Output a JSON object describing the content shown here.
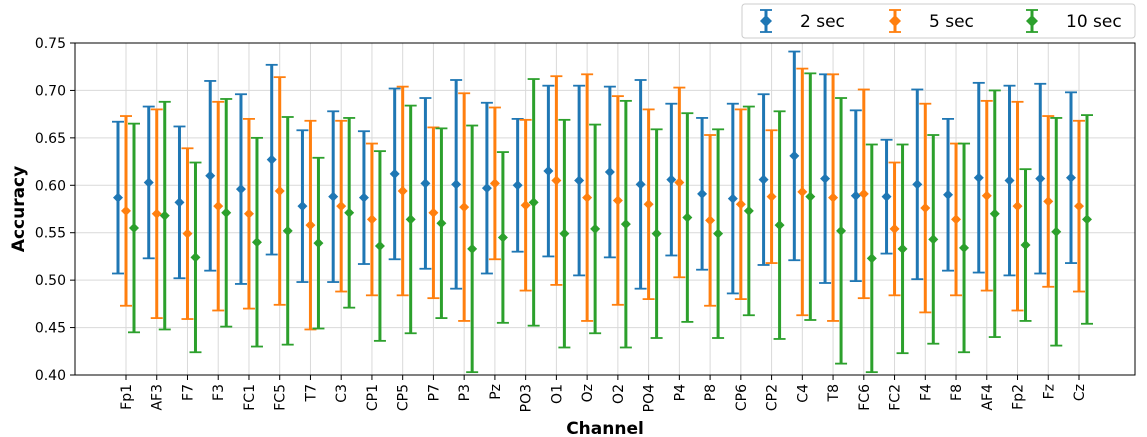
{
  "chart_data": {
    "type": "errorbar",
    "xlabel": "Channel",
    "ylabel": "Accuracy",
    "ylim": [
      0.4,
      0.75
    ],
    "yticks": [
      "0.40",
      "0.45",
      "0.50",
      "0.55",
      "0.60",
      "0.65",
      "0.70",
      "0.75"
    ],
    "grid": true,
    "legend_position": "top-right",
    "categories": [
      "Fp1",
      "AF3",
      "F7",
      "F3",
      "FC1",
      "FC5",
      "T7",
      "C3",
      "CP1",
      "CP5",
      "P7",
      "P3",
      "Pz",
      "PO3",
      "O1",
      "Oz",
      "O2",
      "PO4",
      "P4",
      "P8",
      "CP6",
      "CP2",
      "C4",
      "T8",
      "FC6",
      "FC2",
      "F4",
      "F8",
      "AF4",
      "Fp2",
      "Fz",
      "Cz"
    ],
    "series": [
      {
        "name": "2 sec",
        "color": "#1f77b4",
        "marker": "diamond",
        "values": [
          0.587,
          0.603,
          0.582,
          0.61,
          0.596,
          0.627,
          0.578,
          0.588,
          0.587,
          0.612,
          0.602,
          0.601,
          0.597,
          0.6,
          0.615,
          0.605,
          0.614,
          0.601,
          0.606,
          0.591,
          0.586,
          0.606,
          0.631,
          0.607,
          0.589,
          0.588,
          0.601,
          0.59,
          0.608,
          0.605,
          0.607,
          0.608
        ],
        "errors": [
          0.08,
          0.08,
          0.08,
          0.1,
          0.1,
          0.1,
          0.08,
          0.09,
          0.07,
          0.09,
          0.09,
          0.11,
          0.09,
          0.07,
          0.09,
          0.1,
          0.09,
          0.11,
          0.08,
          0.08,
          0.1,
          0.09,
          0.11,
          0.11,
          0.09,
          0.06,
          0.1,
          0.08,
          0.1,
          0.1,
          0.1,
          0.09
        ]
      },
      {
        "name": "5 sec",
        "color": "#ff7f0e",
        "marker": "diamond",
        "values": [
          0.573,
          0.57,
          0.549,
          0.578,
          0.57,
          0.594,
          0.558,
          0.578,
          0.564,
          0.594,
          0.571,
          0.577,
          0.602,
          0.579,
          0.605,
          0.587,
          0.584,
          0.58,
          0.603,
          0.563,
          0.58,
          0.588,
          0.593,
          0.587,
          0.591,
          0.554,
          0.576,
          0.564,
          0.589,
          0.578,
          0.583,
          0.578
        ],
        "errors": [
          0.1,
          0.11,
          0.09,
          0.11,
          0.1,
          0.12,
          0.11,
          0.09,
          0.08,
          0.11,
          0.09,
          0.12,
          0.08,
          0.09,
          0.11,
          0.13,
          0.11,
          0.1,
          0.1,
          0.09,
          0.1,
          0.07,
          0.13,
          0.13,
          0.11,
          0.07,
          0.11,
          0.08,
          0.1,
          0.11,
          0.09,
          0.09
        ]
      },
      {
        "name": "10 sec",
        "color": "#2ca02c",
        "marker": "diamond",
        "values": [
          0.555,
          0.568,
          0.524,
          0.571,
          0.54,
          0.552,
          0.539,
          0.571,
          0.536,
          0.564,
          0.56,
          0.533,
          0.545,
          0.582,
          0.549,
          0.554,
          0.559,
          0.549,
          0.566,
          0.549,
          0.573,
          0.558,
          0.588,
          0.552,
          0.523,
          0.533,
          0.543,
          0.534,
          0.57,
          0.537,
          0.551,
          0.564
        ],
        "errors": [
          0.11,
          0.12,
          0.1,
          0.12,
          0.11,
          0.12,
          0.09,
          0.1,
          0.1,
          0.12,
          0.1,
          0.13,
          0.09,
          0.13,
          0.12,
          0.11,
          0.13,
          0.11,
          0.11,
          0.11,
          0.11,
          0.12,
          0.13,
          0.14,
          0.12,
          0.11,
          0.11,
          0.11,
          0.13,
          0.08,
          0.12,
          0.11
        ]
      }
    ]
  }
}
